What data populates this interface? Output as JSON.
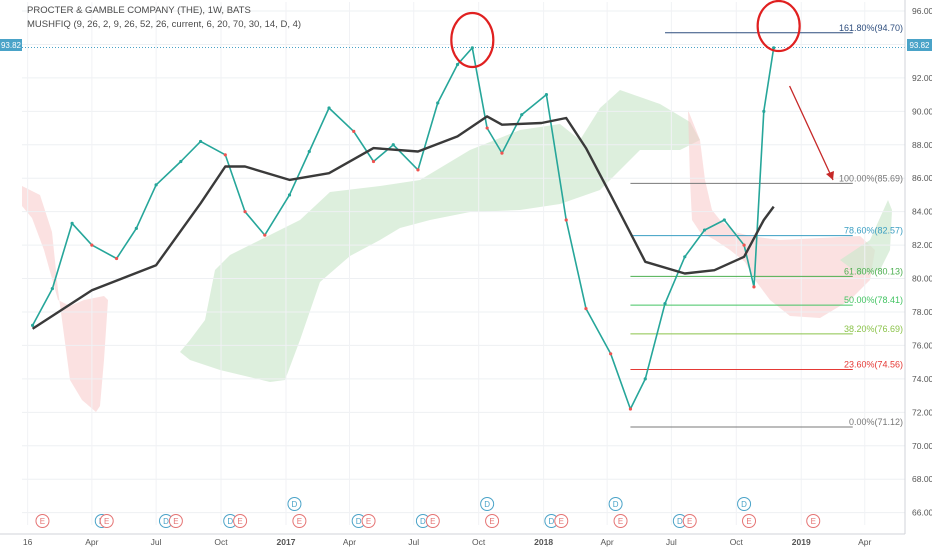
{
  "header": {
    "title": "PROCTER & GAMBLE COMPANY (THE), 1W, BATS",
    "study": "MUSHFIQ (9, 26, 2, 9, 26, 52, 26, current, 6, 20, 70, 30, 14, D, 4)"
  },
  "price_badge": "93.82",
  "chart_data": {
    "type": "line",
    "title": "PROCTER & GAMBLE COMPANY (THE), 1W, BATS",
    "xlabel": "",
    "ylabel": "",
    "ylim": [
      65.5,
      96.3
    ],
    "last_price": 93.82,
    "y_ticks": [
      "66.00",
      "68.00",
      "70.00",
      "72.00",
      "74.00",
      "76.00",
      "78.00",
      "80.00",
      "82.00",
      "84.00",
      "86.00",
      "88.00",
      "90.00",
      "92.00",
      "94.00",
      "96.00"
    ],
    "x_ticks": [
      {
        "label": "16",
        "date": "2016-01-01"
      },
      {
        "label": "Apr",
        "date": "2016-04-01"
      },
      {
        "label": "Jul",
        "date": "2016-07-01"
      },
      {
        "label": "Oct",
        "date": "2016-10-01"
      },
      {
        "label": "2017",
        "date": "2017-01-01"
      },
      {
        "label": "Apr",
        "date": "2017-04-01"
      },
      {
        "label": "Jul",
        "date": "2017-07-01"
      },
      {
        "label": "Oct",
        "date": "2017-10-01"
      },
      {
        "label": "2018",
        "date": "2018-01-01"
      },
      {
        "label": "Apr",
        "date": "2018-04-01"
      },
      {
        "label": "Jul",
        "date": "2018-07-01"
      },
      {
        "label": "Oct",
        "date": "2018-10-01"
      },
      {
        "label": "2019",
        "date": "2019-01-01"
      },
      {
        "label": "Apr",
        "date": "2019-04-01"
      }
    ],
    "series": [
      {
        "name": "close",
        "color": "#26a69a",
        "x": [
          "2016-01-08",
          "2016-02-05",
          "2016-03-04",
          "2016-04-01",
          "2016-05-06",
          "2016-06-03",
          "2016-07-01",
          "2016-08-05",
          "2016-09-02",
          "2016-10-07",
          "2016-11-04",
          "2016-12-02",
          "2017-01-06",
          "2017-02-03",
          "2017-03-03",
          "2017-04-07",
          "2017-05-05",
          "2017-06-02",
          "2017-07-07",
          "2017-08-04",
          "2017-09-01",
          "2017-09-22",
          "2017-10-13",
          "2017-11-03",
          "2017-12-01",
          "2018-01-05",
          "2018-02-02",
          "2018-03-02",
          "2018-04-06",
          "2018-05-04",
          "2018-05-25",
          "2018-06-22",
          "2018-07-20",
          "2018-08-17",
          "2018-09-14",
          "2018-10-12",
          "2018-10-26",
          "2018-11-09",
          "2018-11-23"
        ],
        "values": [
          77.2,
          79.4,
          83.3,
          82.0,
          81.2,
          83.0,
          85.6,
          87.0,
          88.2,
          87.4,
          84.0,
          82.6,
          85.0,
          87.6,
          90.2,
          88.8,
          87.0,
          88.0,
          86.5,
          90.5,
          92.8,
          93.8,
          89.0,
          87.5,
          89.8,
          91.0,
          83.5,
          78.2,
          75.5,
          72.2,
          74.0,
          78.5,
          81.3,
          82.9,
          83.5,
          82.0,
          79.5,
          90.0,
          93.8
        ]
      },
      {
        "name": "moving-average",
        "color": "#3a3a3a",
        "x": [
          "2016-01-08",
          "2016-04-01",
          "2016-07-01",
          "2016-09-02",
          "2016-10-07",
          "2016-11-04",
          "2017-01-06",
          "2017-03-03",
          "2017-05-05",
          "2017-07-07",
          "2017-09-01",
          "2017-10-13",
          "2017-11-03",
          "2017-12-29",
          "2018-02-02",
          "2018-03-02",
          "2018-04-06",
          "2018-05-25",
          "2018-07-20",
          "2018-08-31",
          "2018-10-12",
          "2018-11-09",
          "2018-11-23"
        ],
        "values": [
          77.0,
          79.3,
          80.8,
          84.5,
          86.7,
          86.7,
          85.9,
          86.3,
          87.8,
          87.6,
          88.5,
          89.7,
          89.2,
          89.3,
          89.6,
          87.8,
          85.0,
          81.0,
          80.3,
          80.5,
          81.3,
          83.5,
          84.3
        ]
      }
    ],
    "fibonacci": [
      {
        "label": "161.80%(94.70)",
        "value": 94.7,
        "color": "#2f4f7f"
      },
      {
        "label": "100.00%(85.69)",
        "value": 85.69,
        "color": "#787878"
      },
      {
        "label": "78.60%(82.57)",
        "value": 82.57,
        "color": "#3a9ec2"
      },
      {
        "label": "61.80%(80.13)",
        "value": 80.13,
        "color": "#4caf50"
      },
      {
        "label": "50.00%(78.41)",
        "value": 78.41,
        "color": "#43c463"
      },
      {
        "label": "38.20%(76.69)",
        "value": 76.69,
        "color": "#8bc34a"
      },
      {
        "label": "23.60%(74.56)",
        "value": 74.56,
        "color": "#e53935"
      },
      {
        "label": "0.00%(71.12)",
        "value": 71.12,
        "color": "#787878"
      }
    ],
    "event_badges": [
      {
        "label": "E",
        "date": "2016-01-22",
        "row": "lower"
      },
      {
        "label": "D",
        "date": "2016-04-15",
        "row": "lower"
      },
      {
        "label": "E",
        "date": "2016-04-22",
        "row": "lower"
      },
      {
        "label": "D",
        "date": "2016-07-15",
        "row": "lower"
      },
      {
        "label": "E",
        "date": "2016-07-29",
        "row": "lower"
      },
      {
        "label": "D",
        "date": "2016-10-14",
        "row": "lower"
      },
      {
        "label": "E",
        "date": "2016-10-28",
        "row": "lower"
      },
      {
        "label": "D",
        "date": "2017-01-13",
        "row": "upper"
      },
      {
        "label": "E",
        "date": "2017-01-20",
        "row": "lower"
      },
      {
        "label": "D",
        "date": "2017-04-14",
        "row": "lower"
      },
      {
        "label": "E",
        "date": "2017-04-28",
        "row": "lower"
      },
      {
        "label": "D",
        "date": "2017-07-14",
        "row": "lower"
      },
      {
        "label": "E",
        "date": "2017-07-28",
        "row": "lower"
      },
      {
        "label": "D",
        "date": "2017-10-13",
        "row": "upper"
      },
      {
        "label": "E",
        "date": "2017-10-20",
        "row": "lower"
      },
      {
        "label": "D",
        "date": "2018-01-12",
        "row": "lower"
      },
      {
        "label": "E",
        "date": "2018-01-26",
        "row": "lower"
      },
      {
        "label": "D",
        "date": "2018-04-13",
        "row": "upper"
      },
      {
        "label": "E",
        "date": "2018-04-20",
        "row": "lower"
      },
      {
        "label": "D",
        "date": "2018-07-13",
        "row": "lower"
      },
      {
        "label": "E",
        "date": "2018-07-27",
        "row": "lower"
      },
      {
        "label": "D",
        "date": "2018-10-12",
        "row": "upper"
      },
      {
        "label": "E",
        "date": "2018-10-19",
        "row": "lower"
      },
      {
        "label": "E",
        "date": "2019-01-18",
        "row": "lower"
      }
    ],
    "grid": true,
    "legend": "none"
  }
}
